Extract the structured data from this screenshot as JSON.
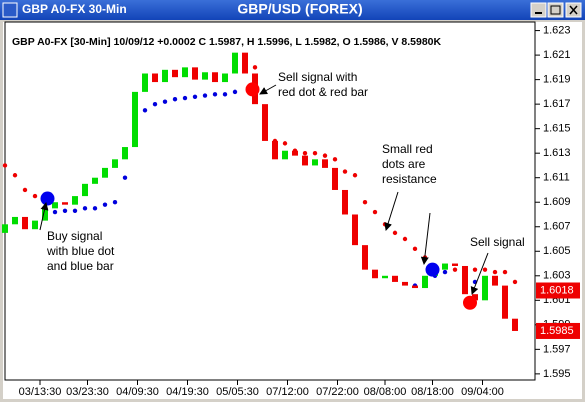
{
  "chart_data": {
    "type": "candlestick",
    "window_title": "GBP A0-FX 30-Min",
    "title": "GBP/USD (FOREX)",
    "header": "GBP A0-FX [30-Min] 10/09/12 +0.0002 C 1.5987, H 1.5996, L 1.5982, O 1.5986, V 8.5980K",
    "x": [
      0,
      4,
      8,
      12,
      16,
      20,
      24,
      28,
      32,
      36,
      40,
      44,
      48,
      52,
      56,
      60,
      64,
      68,
      72,
      76,
      80,
      84,
      88,
      92,
      96,
      100,
      104,
      108,
      112,
      116,
      120,
      124,
      128,
      132,
      136,
      140,
      144,
      148,
      152,
      156,
      160,
      164,
      168,
      172,
      176,
      180,
      184,
      188,
      192,
      196,
      200,
      204
    ],
    "open": [
      1.6065,
      1.6072,
      1.6078,
      1.6068,
      1.6075,
      1.6085,
      1.609,
      1.6088,
      1.6095,
      1.6105,
      1.611,
      1.6118,
      1.6125,
      1.6135,
      1.618,
      1.6195,
      1.6188,
      1.6198,
      1.6192,
      1.62,
      1.619,
      1.6196,
      1.6188,
      1.6195,
      1.6212,
      1.6195,
      1.617,
      1.614,
      1.6125,
      1.6132,
      1.6128,
      1.612,
      1.6125,
      1.6118,
      1.61,
      1.608,
      1.6055,
      1.6035,
      1.6028,
      1.603,
      1.6025,
      1.6022,
      1.602,
      1.603,
      1.6035,
      1.604,
      1.6038,
      1.6015,
      1.601,
      1.603,
      1.6022,
      1.5995
    ],
    "close": [
      1.6072,
      1.6078,
      1.6068,
      1.6075,
      1.6085,
      1.609,
      1.6088,
      1.6095,
      1.6105,
      1.611,
      1.6118,
      1.6125,
      1.6135,
      1.618,
      1.6195,
      1.6188,
      1.6198,
      1.6192,
      1.62,
      1.619,
      1.6196,
      1.6188,
      1.6195,
      1.6212,
      1.6195,
      1.617,
      1.614,
      1.6125,
      1.6132,
      1.6128,
      1.612,
      1.6125,
      1.6118,
      1.61,
      1.608,
      1.6055,
      1.6035,
      1.6028,
      1.603,
      1.6025,
      1.6022,
      1.602,
      1.603,
      1.6035,
      1.604,
      1.6038,
      1.6015,
      1.601,
      1.603,
      1.6022,
      1.5995,
      1.5985
    ],
    "up_color": "#00dd00",
    "down_color": "#ee0000",
    "dots": [
      {
        "color": "#ee0000",
        "values": [
          1.612,
          1.6112,
          1.61,
          1.6095,
          null,
          null,
          null,
          null,
          null,
          null,
          null,
          null,
          null,
          null,
          null,
          null,
          null,
          null,
          null,
          null,
          null,
          null,
          null,
          null,
          null,
          1.62,
          1.616,
          1.614,
          1.6138,
          1.6132,
          1.613,
          1.613,
          1.6128,
          1.6125,
          1.6115,
          1.6112,
          1.609,
          1.6082,
          1.6072,
          1.6065,
          1.606,
          1.6052,
          1.6045,
          null,
          null,
          1.6035,
          1.6035,
          1.6035,
          1.6035,
          1.6033,
          1.6033,
          1.6025
        ]
      },
      {
        "color": "#0000dd",
        "values": [
          null,
          null,
          null,
          null,
          1.6082,
          1.6082,
          1.6083,
          1.6083,
          1.6085,
          1.6085,
          1.6088,
          1.609,
          1.611,
          1.615,
          1.6165,
          1.617,
          1.6172,
          1.6174,
          1.6175,
          1.6176,
          1.6177,
          1.6178,
          1.6178,
          1.618,
          null,
          null,
          null,
          null,
          null,
          null,
          null,
          null,
          null,
          null,
          null,
          null,
          null,
          null,
          null,
          null,
          null,
          1.6022,
          1.6025,
          1.603,
          1.6033,
          null,
          null,
          1.6025,
          1.6025,
          null,
          null,
          null
        ]
      }
    ],
    "signals": [
      {
        "x": 17,
        "value": 1.6093,
        "color": "#0000ee"
      },
      {
        "x": 99,
        "value": 1.6182,
        "color": "#ff0000"
      },
      {
        "x": 171,
        "value": 1.6035,
        "color": "#0000ee"
      },
      {
        "x": 186,
        "value": 1.6008,
        "color": "#ff0000"
      }
    ],
    "annotations": [
      {
        "lines": [
          "Buy signal",
          "with blue dot",
          "and blue bar"
        ]
      },
      {
        "lines": [
          "Sell signal with",
          "red dot & red bar"
        ]
      },
      {
        "lines": [
          "Small red",
          "dots are",
          "resistance"
        ]
      },
      {
        "lines": [
          "Sell signal"
        ]
      }
    ],
    "price_labels": [
      {
        "value": 1.6018,
        "color": "#ee0000"
      },
      {
        "value": 1.5985,
        "color": "#ee0000"
      }
    ],
    "xlim": [
      0,
      210
    ],
    "xticks": [
      {
        "value": 14,
        "label": "03/13:30"
      },
      {
        "value": 33,
        "label": "03/23:30"
      },
      {
        "value": 53,
        "label": "04/09:30"
      },
      {
        "value": 73,
        "label": "04/19:30"
      },
      {
        "value": 93,
        "label": "05/05:30"
      },
      {
        "value": 113,
        "label": "07/12:00"
      },
      {
        "value": 133,
        "label": "07/22:00"
      },
      {
        "value": 152,
        "label": "08/08:00"
      },
      {
        "value": 171,
        "label": "08/18:00"
      },
      {
        "value": 191,
        "label": "09/04:00"
      }
    ],
    "ylim": [
      1.5945,
      1.6237
    ],
    "yticks": [
      1.595,
      1.597,
      1.599,
      1.601,
      1.603,
      1.605,
      1.607,
      1.609,
      1.611,
      1.613,
      1.615,
      1.617,
      1.619,
      1.621,
      1.623
    ]
  }
}
